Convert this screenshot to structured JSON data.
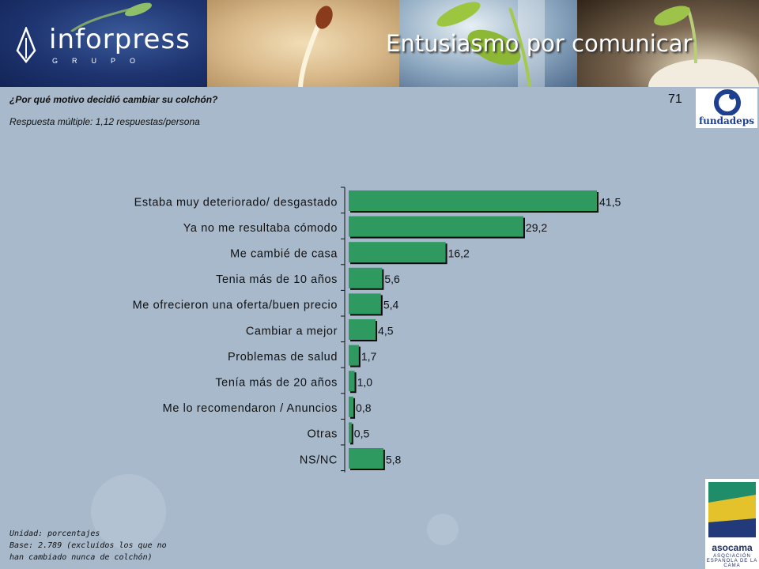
{
  "header": {
    "brand_name": "inforpress",
    "brand_sub": "GRUPO",
    "slogan": "Entusiasmo por comunicar"
  },
  "page_number": "71",
  "question": "¿Por qué motivo decidió cambiar su colchón?",
  "subtitle": "Respuesta múltiple: 1,12 respuestas/persona",
  "footnote": {
    "line1": "Unidad: porcentajes",
    "line2": "Base: 2.789 (excluidos los que no",
    "line3": "han cambiado nunca de colchón)"
  },
  "logos": {
    "fundadeps": "fundadeps",
    "asocama": "asocama",
    "asocama_sub": "ASOCIACIÓN ESPAÑOLA DE LA CAMA"
  },
  "colors": {
    "bar": "#2e9a60",
    "bar_shadow": "#0c0c0c",
    "text": "#111111"
  },
  "chart_data": {
    "type": "bar",
    "orientation": "horizontal",
    "categories": [
      "Estaba muy deteriorado/ desgastado",
      "Ya no me resultaba cómodo",
      "Me cambié de casa",
      "Tenia más de 10 años",
      "Me ofrecieron una oferta/buen precio",
      "Cambiar a mejor",
      "Problemas de salud",
      "Tenía más de 20 años",
      "Me lo recomendaron / Anuncios",
      "Otras",
      "NS/NC"
    ],
    "values": [
      41.5,
      29.2,
      16.2,
      5.6,
      5.4,
      4.5,
      1.7,
      1.0,
      0.8,
      0.5,
      5.8
    ],
    "value_labels": [
      "41,5",
      "29,2",
      "16,2",
      "5,6",
      "5,4",
      "4,5",
      "1,7",
      "1,0",
      "0,8",
      "0,5",
      "5,8"
    ],
    "xlim": [
      0,
      42
    ],
    "grid": false,
    "legend": "none"
  }
}
